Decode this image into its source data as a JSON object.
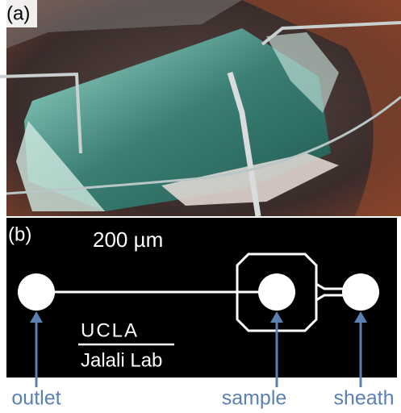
{
  "panel_a": {
    "label": "(a)"
  },
  "panel_b": {
    "label": "(b)",
    "scale_bar": "200 µm",
    "logo": {
      "line1": "UCLA",
      "line2": "Jalali Lab"
    }
  },
  "ports": [
    {
      "label": "outlet"
    },
    {
      "label": "sample"
    },
    {
      "label": "sheath"
    }
  ]
}
